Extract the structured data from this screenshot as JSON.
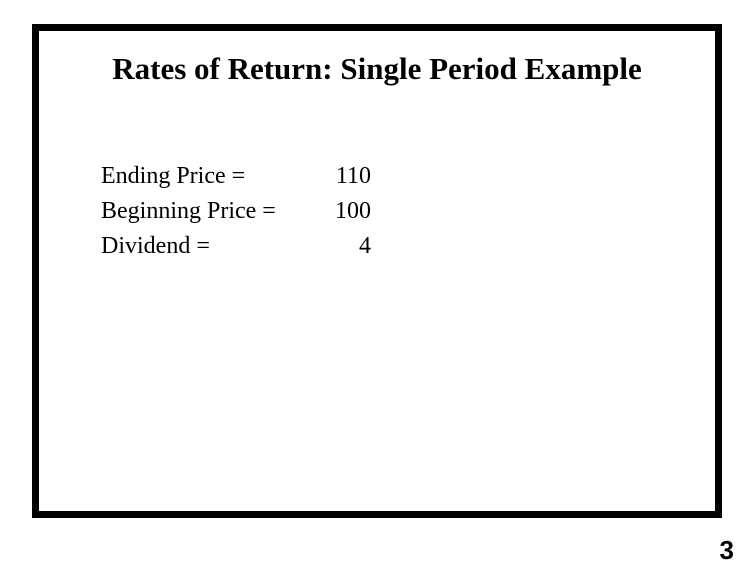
{
  "slide": {
    "title": "Rates of Return: Single Period Example",
    "rows": [
      {
        "label": "Ending Price =",
        "value": "110"
      },
      {
        "label": "Beginning Price =",
        "value": "100"
      },
      {
        "label": "Dividend =",
        "value": "4"
      }
    ],
    "page_number": "3",
    "border_color": "#000000",
    "background_color": "#ffffff",
    "text_color": "#000000",
    "title_fontsize": 31,
    "body_fontsize": 24
  }
}
